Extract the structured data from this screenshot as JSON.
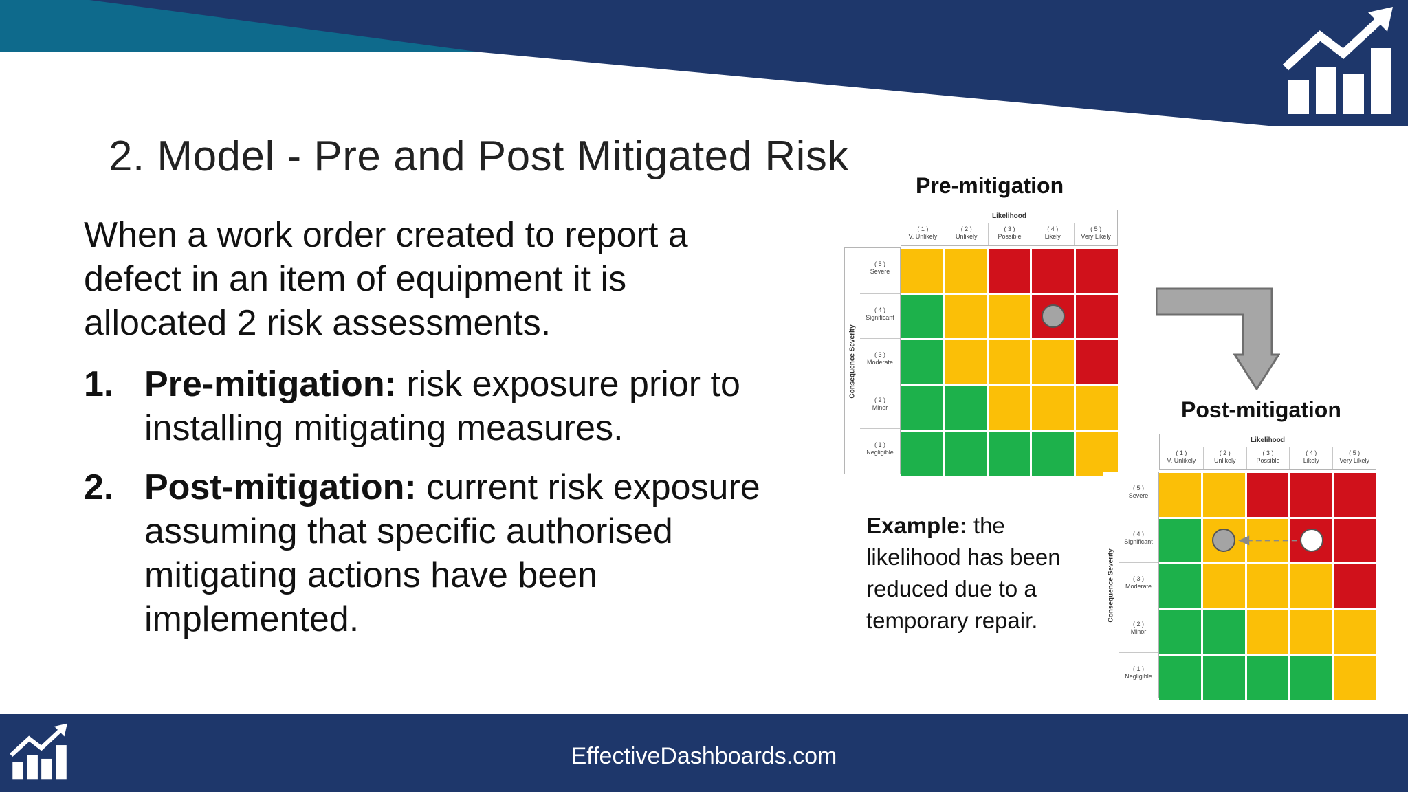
{
  "colors": {
    "navy": "#1e376b",
    "teal": "#0e6a8c",
    "green": "#1db14b",
    "amber": "#fbbf07",
    "red": "#d0111b",
    "arrow_grey": "#a6a6a6"
  },
  "icons": [
    "chart-growth-icon"
  ],
  "slide": {
    "title": "2. Model - Pre and Post Mitigated Risk",
    "intro": "When a work order created to report a defect in an item of equipment it is allocated 2 risk assessments.",
    "points": [
      {
        "number": "1.",
        "label": "Pre-mitigation:",
        "text": " risk exposure prior to installing mitigating measures."
      },
      {
        "number": "2.",
        "label": "Post-mitigation:",
        "text": " current risk exposure assuming that specific authorised mitigating actions have been implemented."
      }
    ],
    "example": {
      "label": "Example:",
      "text": " the likelihood has been reduced due to a temporary repair."
    }
  },
  "footer": {
    "text": "EffectiveDashboards.com"
  },
  "matrices": {
    "likelihood_title": "Likelihood",
    "severity_title": "Consequence Severity",
    "likelihood": [
      {
        "code": "( 1 )",
        "name": "V. Unlikely"
      },
      {
        "code": "( 2 )",
        "name": "Unlikely"
      },
      {
        "code": "( 3 )",
        "name": "Possible"
      },
      {
        "code": "( 4 )",
        "name": "Likely"
      },
      {
        "code": "( 5 )",
        "name": "Very Likely"
      }
    ],
    "severity": [
      {
        "code": "( 5 )",
        "name": "Severe"
      },
      {
        "code": "( 4 )",
        "name": "Significant"
      },
      {
        "code": "( 3 )",
        "name": "Moderate"
      },
      {
        "code": "( 2 )",
        "name": "Minor"
      },
      {
        "code": "( 1 )",
        "name": "Negligible"
      }
    ],
    "grid": [
      [
        "amber",
        "amber",
        "red",
        "red",
        "red"
      ],
      [
        "green",
        "amber",
        "amber",
        "red",
        "red"
      ],
      [
        "green",
        "amber",
        "amber",
        "amber",
        "red"
      ],
      [
        "green",
        "green",
        "amber",
        "amber",
        "amber"
      ],
      [
        "green",
        "green",
        "green",
        "green",
        "amber"
      ]
    ],
    "pre": {
      "title": "Pre-mitigation",
      "markers": [
        {
          "severity": 4,
          "likelihood": 4,
          "style": "grey"
        }
      ]
    },
    "post": {
      "title": "Post-mitigation",
      "markers": [
        {
          "severity": 4,
          "likelihood": 2,
          "style": "grey"
        },
        {
          "severity": 4,
          "likelihood": 4,
          "style": "white"
        }
      ]
    }
  }
}
